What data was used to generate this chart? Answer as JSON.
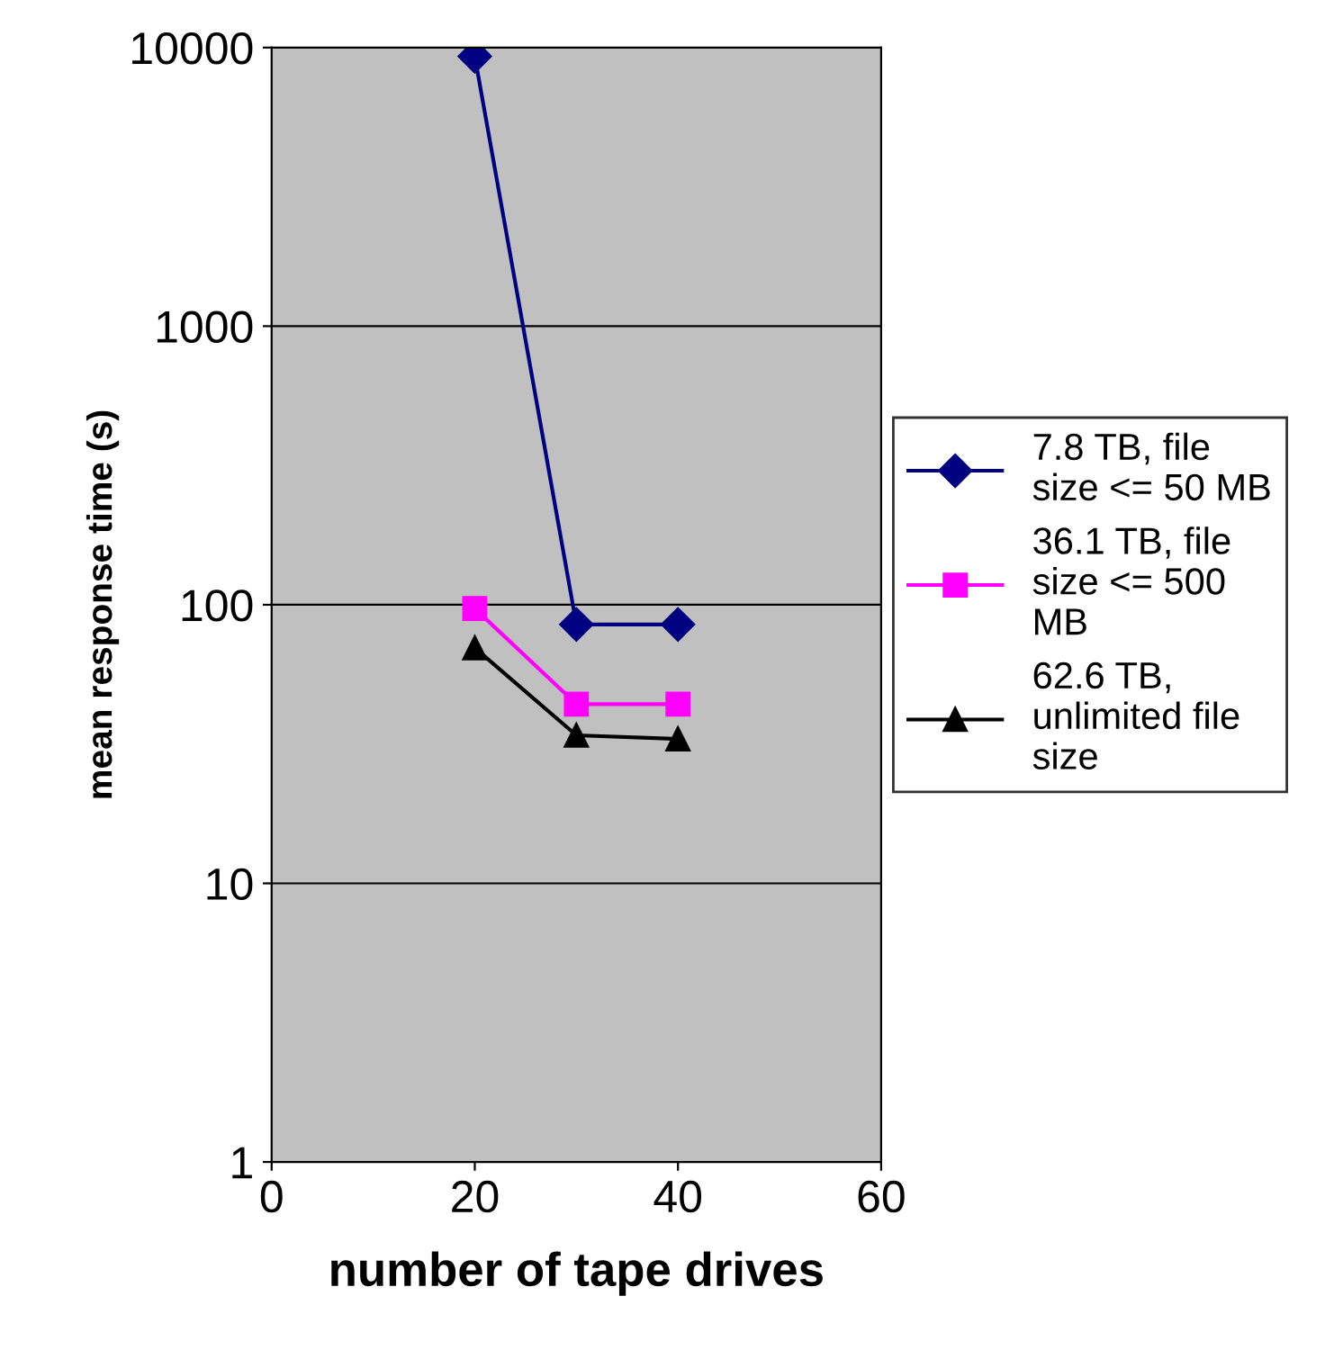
{
  "chart_data": {
    "type": "line",
    "xlabel": "number of tape drives",
    "ylabel": "mean response time (s)",
    "log": "y",
    "xlim": [
      0,
      60
    ],
    "xticks": [
      0,
      20,
      40,
      60
    ],
    "ylim": [
      1,
      10000
    ],
    "yticks": [
      1,
      10,
      100,
      1000,
      10000
    ],
    "grid": "y",
    "legend": "right",
    "line_style": "solid",
    "series": [
      {
        "name": "7.8 TB, file size <= 50 MB",
        "color": "#000080",
        "marker": "diamond",
        "x": [
          20,
          30,
          40
        ],
        "values": [
          9300,
          85,
          85
        ]
      },
      {
        "name": "36.1 TB, file size <= 500 MB",
        "color": "#ff00ff",
        "marker": "square",
        "x": [
          20,
          30,
          40
        ],
        "values": [
          97,
          44,
          44
        ]
      },
      {
        "name": "62.6 TB, unlimited file size",
        "color": "#000000",
        "marker": "triangle",
        "x": [
          20,
          30,
          40
        ],
        "values": [
          70,
          34,
          33
        ]
      }
    ]
  }
}
